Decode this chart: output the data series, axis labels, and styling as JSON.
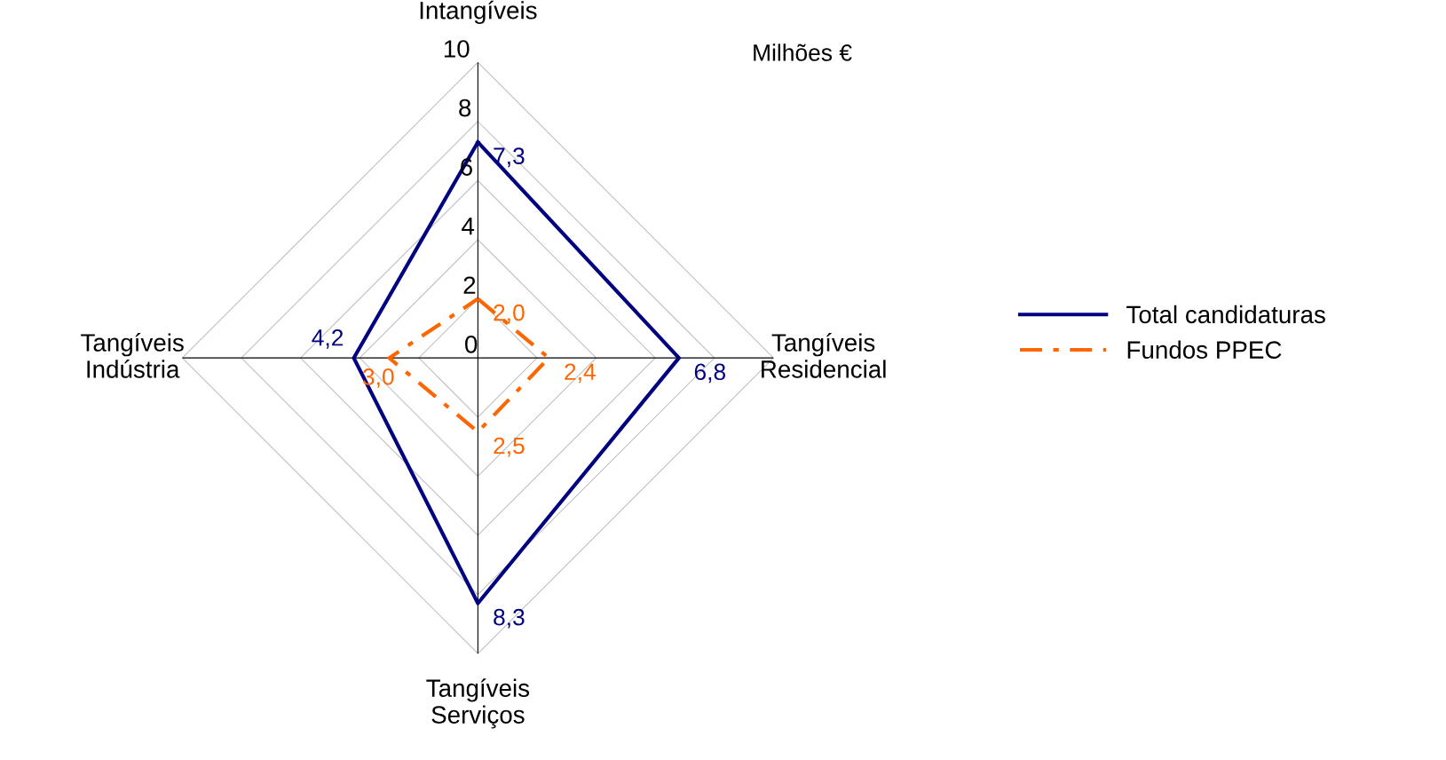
{
  "chart_data": {
    "type": "radar",
    "categories": [
      "Intangíveis",
      "Tangíveis\nResidencial",
      "Tangíveis\nServiços",
      "Tangíveis\nIndústria"
    ],
    "series": [
      {
        "name": "Total candidaturas",
        "color": "#000080",
        "line_style": "solid",
        "values": [
          7.3,
          6.8,
          8.3,
          4.2
        ],
        "value_labels": [
          "7,3",
          "6,8",
          "8,3",
          "4,2"
        ]
      },
      {
        "name": "Fundos PPEC",
        "color": "#ff6600",
        "line_style": "dashdot",
        "values": [
          2.0,
          2.4,
          2.5,
          3.0
        ],
        "value_labels": [
          "2,0",
          "2,4",
          "2,5",
          "3,0"
        ]
      }
    ],
    "ylim": [
      0,
      10
    ],
    "yticks": [
      0,
      2,
      4,
      6,
      8,
      10
    ],
    "grid": true,
    "legend": "right",
    "annotations": [
      "Milhões €"
    ]
  }
}
